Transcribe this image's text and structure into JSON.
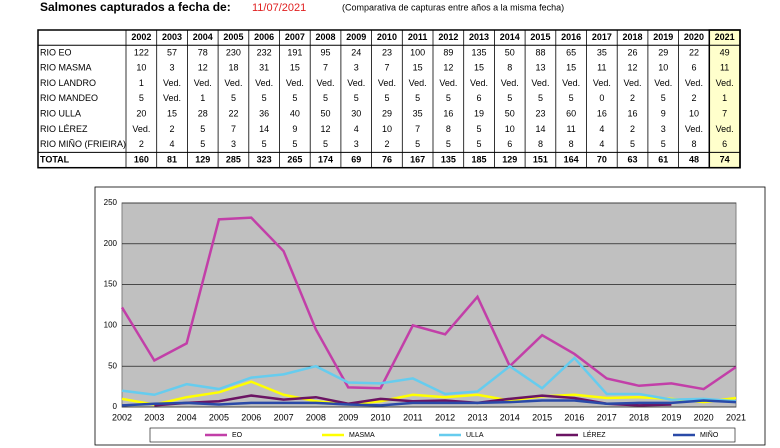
{
  "header": {
    "title": "Salmones capturados a fecha de:",
    "date": "11/07/2021",
    "note": "(Comparativa de capturas entre años a la misma fecha)"
  },
  "table": {
    "years": [
      "2002",
      "2003",
      "2004",
      "2005",
      "2006",
      "2007",
      "2008",
      "2009",
      "2010",
      "2011",
      "2012",
      "2013",
      "2014",
      "2015",
      "2016",
      "2017",
      "2018",
      "2019",
      "2020",
      "2021"
    ],
    "rows": [
      {
        "name": "RIO EO",
        "values": [
          122,
          57,
          78,
          230,
          232,
          191,
          95,
          24,
          23,
          100,
          89,
          135,
          50,
          88,
          65,
          35,
          26,
          29,
          22,
          49
        ]
      },
      {
        "name": "RIO MASMA",
        "values": [
          10,
          3,
          12,
          18,
          31,
          15,
          7,
          3,
          7,
          15,
          12,
          15,
          8,
          13,
          15,
          11,
          12,
          10,
          6,
          11
        ]
      },
      {
        "name": "RIO LANDRO",
        "values": [
          1,
          "Ved.",
          "Ved.",
          "Ved.",
          "Ved.",
          "Ved.",
          "Ved.",
          "Ved.",
          "Ved.",
          "Ved.",
          "Ved.",
          "Ved.",
          "Ved.",
          "Ved.",
          "Ved.",
          "Ved.",
          "Ved.",
          "Ved.",
          "Ved.",
          "Ved."
        ]
      },
      {
        "name": "RIO MANDEO",
        "values": [
          5,
          "Ved.",
          1,
          5,
          5,
          5,
          5,
          5,
          5,
          5,
          5,
          6,
          5,
          5,
          5,
          0,
          2,
          5,
          2,
          1
        ]
      },
      {
        "name": "RIO ULLA",
        "values": [
          20,
          15,
          28,
          22,
          36,
          40,
          50,
          30,
          29,
          35,
          16,
          19,
          50,
          23,
          60,
          16,
          16,
          9,
          10,
          7
        ]
      },
      {
        "name": "RIO LÉREZ",
        "values": [
          "Ved.",
          2,
          5,
          7,
          14,
          9,
          12,
          4,
          10,
          7,
          8,
          5,
          10,
          14,
          11,
          4,
          2,
          3,
          "Ved.",
          "Ved."
        ]
      },
      {
        "name": "RIO MIÑO (FRIEIRA)",
        "values": [
          2,
          4,
          5,
          3,
          5,
          5,
          5,
          3,
          2,
          5,
          5,
          5,
          6,
          8,
          8,
          4,
          5,
          5,
          8,
          6
        ]
      }
    ],
    "total": {
      "name": "TOTAL",
      "values": [
        160,
        81,
        129,
        285,
        323,
        265,
        174,
        69,
        76,
        167,
        135,
        185,
        129,
        151,
        164,
        70,
        63,
        61,
        48,
        74
      ]
    }
  },
  "chart_data": {
    "type": "line",
    "categories": [
      "2002",
      "2003",
      "2004",
      "2005",
      "2006",
      "2007",
      "2008",
      "2009",
      "2010",
      "2011",
      "2012",
      "2013",
      "2014",
      "2015",
      "2016",
      "2017",
      "2018",
      "2019",
      "2020",
      "2021"
    ],
    "series": [
      {
        "name": "EO",
        "color": "#c23fa8",
        "values": [
          122,
          57,
          78,
          230,
          232,
          191,
          95,
          24,
          23,
          100,
          89,
          135,
          50,
          88,
          65,
          35,
          26,
          29,
          22,
          49
        ]
      },
      {
        "name": "MASMA",
        "color": "#ffff00",
        "values": [
          10,
          3,
          12,
          18,
          31,
          15,
          7,
          3,
          7,
          15,
          12,
          15,
          8,
          13,
          15,
          11,
          12,
          10,
          6,
          11
        ]
      },
      {
        "name": "ULLA",
        "color": "#66ccee",
        "values": [
          20,
          15,
          28,
          22,
          36,
          40,
          50,
          30,
          29,
          35,
          16,
          19,
          50,
          23,
          60,
          16,
          16,
          9,
          10,
          7
        ]
      },
      {
        "name": "LÉREZ",
        "color": "#6b1463",
        "values": [
          null,
          2,
          5,
          7,
          14,
          9,
          12,
          4,
          10,
          7,
          8,
          5,
          10,
          14,
          11,
          4,
          2,
          3,
          null,
          null
        ]
      },
      {
        "name": "MIÑO",
        "color": "#2a4aa8",
        "values": [
          2,
          4,
          5,
          3,
          5,
          5,
          5,
          3,
          2,
          5,
          5,
          5,
          6,
          8,
          8,
          4,
          5,
          5,
          8,
          6
        ]
      }
    ],
    "ylim": [
      0,
      250
    ],
    "yticks": [
      0,
      50,
      100,
      150,
      200,
      250
    ],
    "grid": true,
    "plot_background": "#c0c0c0",
    "legend": "bottom"
  }
}
